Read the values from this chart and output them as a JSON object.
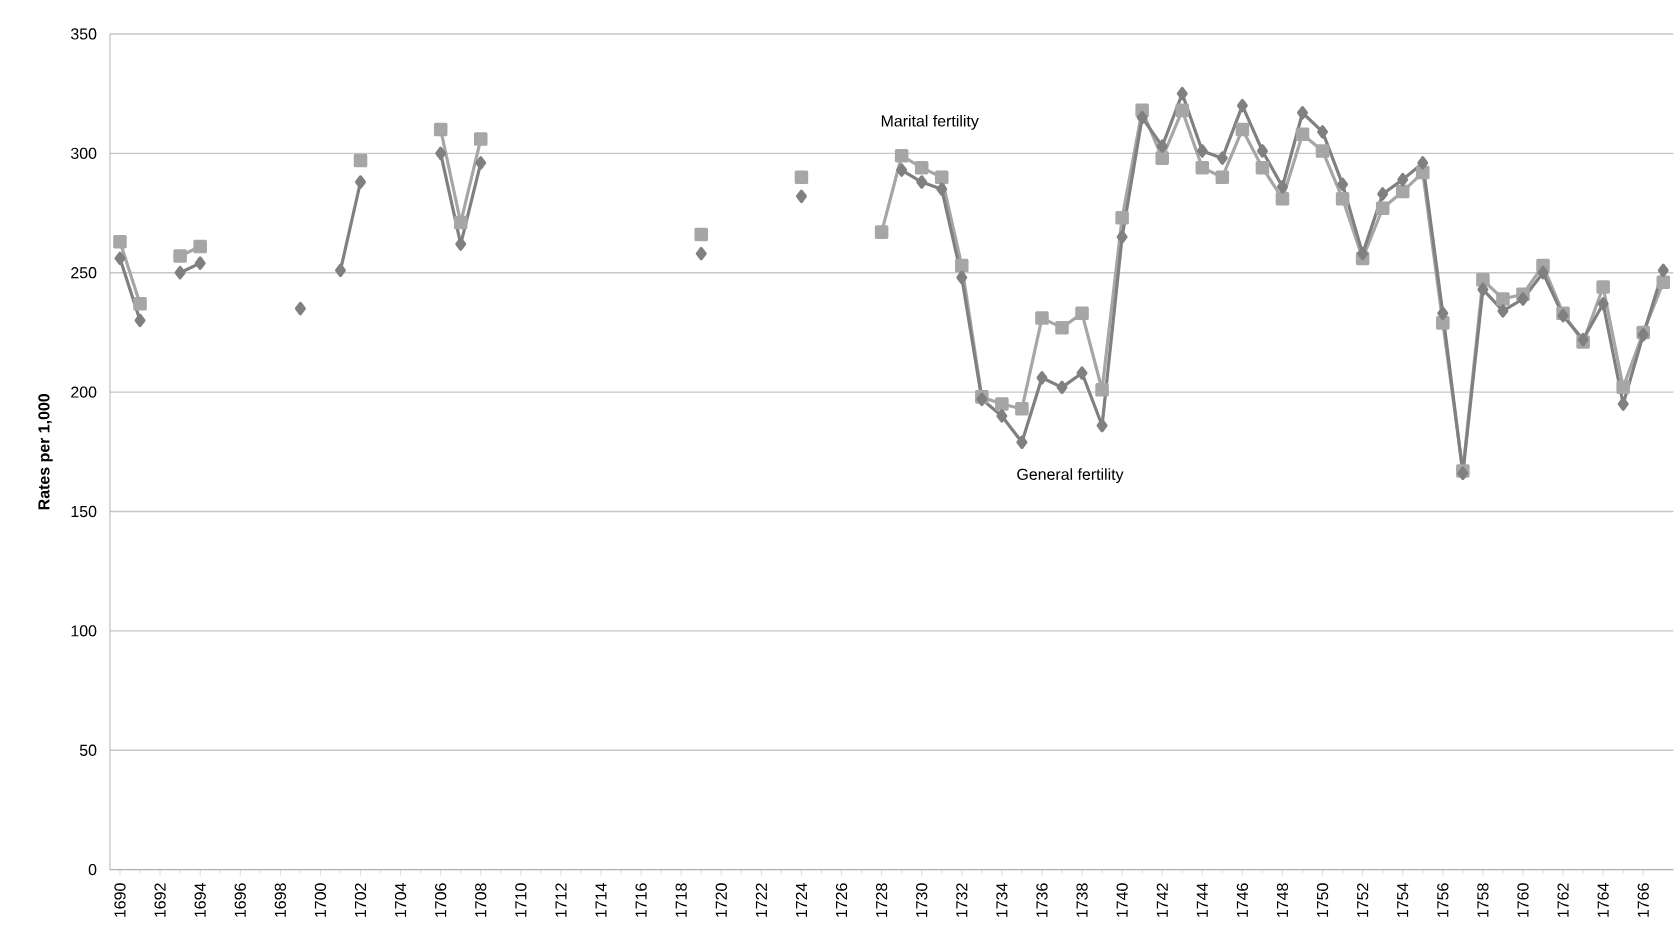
{
  "chart_data": {
    "type": "line",
    "ylabel": "Rates per 1,000",
    "x": [
      1690,
      1691,
      1692,
      1693,
      1694,
      1695,
      1696,
      1697,
      1698,
      1699,
      1700,
      1701,
      1702,
      1703,
      1704,
      1705,
      1706,
      1707,
      1708,
      1709,
      1710,
      1711,
      1712,
      1713,
      1714,
      1715,
      1716,
      1717,
      1718,
      1719,
      1720,
      1721,
      1722,
      1723,
      1724,
      1725,
      1726,
      1727,
      1728,
      1729,
      1730,
      1731,
      1732,
      1733,
      1734,
      1735,
      1736,
      1737,
      1738,
      1739,
      1740,
      1741,
      1742,
      1743,
      1744,
      1745,
      1746,
      1747,
      1748,
      1749,
      1750,
      1751,
      1752,
      1753,
      1754,
      1755,
      1756,
      1757,
      1758,
      1759,
      1760,
      1761,
      1762,
      1763,
      1764,
      1765,
      1766,
      1767
    ],
    "series": [
      {
        "name": "Marital fertility",
        "color": "#a6a6a6",
        "marker": "square",
        "values": [
          263,
          237,
          null,
          257,
          261,
          null,
          null,
          null,
          null,
          null,
          null,
          null,
          297,
          null,
          null,
          null,
          310,
          271,
          306,
          null,
          null,
          null,
          null,
          null,
          null,
          null,
          null,
          null,
          null,
          266,
          null,
          null,
          null,
          null,
          290,
          null,
          null,
          null,
          267,
          299,
          294,
          290,
          253,
          198,
          195,
          193,
          231,
          227,
          233,
          201,
          273,
          318,
          298,
          318,
          294,
          290,
          310,
          294,
          281,
          308,
          301,
          281,
          256,
          277,
          284,
          292,
          229,
          167,
          247,
          239,
          241,
          253,
          233,
          221,
          244,
          202,
          225,
          246
        ]
      },
      {
        "name": "General fertility",
        "color": "#808080",
        "marker": "diamond",
        "values": [
          256,
          230,
          null,
          250,
          254,
          null,
          null,
          null,
          null,
          235,
          null,
          251,
          288,
          null,
          null,
          null,
          300,
          262,
          296,
          null,
          null,
          null,
          null,
          null,
          null,
          null,
          null,
          null,
          null,
          258,
          null,
          null,
          null,
          null,
          282,
          null,
          null,
          null,
          null,
          293,
          288,
          285,
          248,
          197,
          190,
          179,
          206,
          202,
          208,
          186,
          265,
          315,
          303,
          325,
          301,
          298,
          320,
          301,
          286,
          317,
          309,
          287,
          258,
          283,
          289,
          296,
          233,
          166,
          243,
          234,
          239,
          250,
          232,
          222,
          237,
          195,
          224,
          251
        ]
      }
    ],
    "xlim": [
      1689.5,
      1767.5
    ],
    "xticks": [
      1690,
      1692,
      1694,
      1696,
      1698,
      1700,
      1702,
      1704,
      1706,
      1708,
      1710,
      1712,
      1714,
      1716,
      1718,
      1720,
      1722,
      1724,
      1726,
      1728,
      1730,
      1732,
      1734,
      1736,
      1738,
      1740,
      1742,
      1744,
      1746,
      1748,
      1750,
      1752,
      1754,
      1756,
      1758,
      1760,
      1762,
      1764,
      1766
    ],
    "ylim": [
      0,
      350
    ],
    "yticks": [
      0,
      50,
      100,
      150,
      200,
      250,
      300,
      350
    ],
    "grid": "y",
    "legend": false
  }
}
